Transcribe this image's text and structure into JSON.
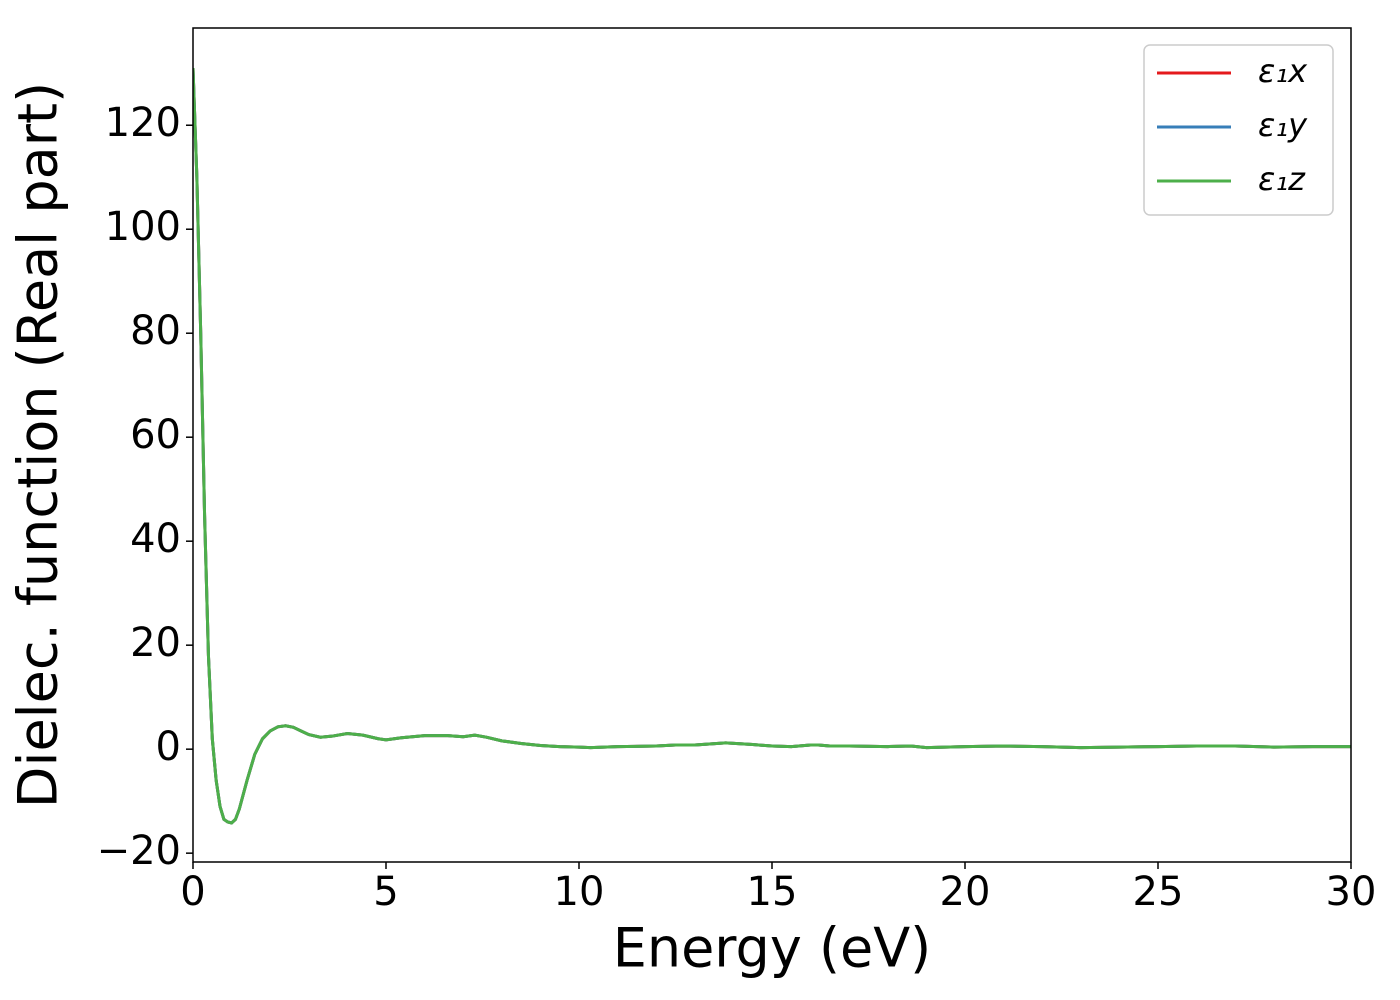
{
  "chart_data": {
    "type": "line",
    "xlabel": "Energy (eV)",
    "ylabel": "Dielec. function (Real part)",
    "x": [
      0,
      0.1,
      0.2,
      0.3,
      0.4,
      0.5,
      0.6,
      0.7,
      0.8,
      0.9,
      1.0,
      1.1,
      1.2,
      1.4,
      1.6,
      1.8,
      2.0,
      2.2,
      2.4,
      2.6,
      2.8,
      3.0,
      3.3,
      3.6,
      4.0,
      4.4,
      4.8,
      5.0,
      5.4,
      6.0,
      6.6,
      7.0,
      7.3,
      7.6,
      8.0,
      8.5,
      9.0,
      9.5,
      10,
      10.3,
      11,
      12,
      12.5,
      13,
      13.8,
      14.5,
      15,
      15.5,
      16,
      16.2,
      16.5,
      17,
      18,
      18.6,
      19,
      19.5,
      20,
      21,
      22,
      23,
      24,
      25,
      26,
      27,
      28,
      29,
      30
    ],
    "series": [
      {
        "name": "ε₁x",
        "color": "#e41a1c",
        "values": [
          131,
          110,
          80,
          45,
          18,
          2,
          -6,
          -11,
          -13.5,
          -14,
          -14.2,
          -13.5,
          -11.5,
          -6,
          -1,
          2,
          3.5,
          4.3,
          4.5,
          4.2,
          3.5,
          2.8,
          2.3,
          2.5,
          3.0,
          2.7,
          2.0,
          1.8,
          2.2,
          2.6,
          2.6,
          2.4,
          2.7,
          2.3,
          1.6,
          1.1,
          0.7,
          0.5,
          0.4,
          0.3,
          0.5,
          0.6,
          0.8,
          0.8,
          1.2,
          0.9,
          0.6,
          0.5,
          0.8,
          0.8,
          0.6,
          0.6,
          0.5,
          0.6,
          0.3,
          0.4,
          0.5,
          0.6,
          0.5,
          0.3,
          0.4,
          0.5,
          0.6,
          0.6,
          0.4,
          0.5,
          0.5
        ]
      },
      {
        "name": "ε₁y",
        "color": "#377eb8",
        "values": [
          131,
          110,
          80,
          45,
          18,
          2,
          -6,
          -11,
          -13.5,
          -14,
          -14.2,
          -13.5,
          -11.5,
          -6,
          -1,
          2,
          3.5,
          4.3,
          4.5,
          4.2,
          3.5,
          2.8,
          2.3,
          2.5,
          3.0,
          2.7,
          2.0,
          1.8,
          2.2,
          2.6,
          2.6,
          2.4,
          2.7,
          2.3,
          1.6,
          1.1,
          0.7,
          0.5,
          0.4,
          0.3,
          0.5,
          0.6,
          0.8,
          0.8,
          1.2,
          0.9,
          0.6,
          0.5,
          0.8,
          0.8,
          0.6,
          0.6,
          0.5,
          0.6,
          0.3,
          0.4,
          0.5,
          0.6,
          0.5,
          0.3,
          0.4,
          0.5,
          0.6,
          0.6,
          0.4,
          0.5,
          0.5
        ]
      },
      {
        "name": "ε₁z",
        "color": "#4daf4a",
        "values": [
          131,
          110,
          80,
          45,
          18,
          2,
          -6,
          -11,
          -13.5,
          -14,
          -14.2,
          -13.5,
          -11.5,
          -6,
          -1,
          2,
          3.5,
          4.3,
          4.5,
          4.2,
          3.5,
          2.8,
          2.3,
          2.5,
          3.0,
          2.7,
          2.0,
          1.8,
          2.2,
          2.6,
          2.6,
          2.4,
          2.7,
          2.3,
          1.6,
          1.1,
          0.7,
          0.5,
          0.4,
          0.3,
          0.5,
          0.6,
          0.8,
          0.8,
          1.2,
          0.9,
          0.6,
          0.5,
          0.8,
          0.8,
          0.6,
          0.6,
          0.5,
          0.6,
          0.3,
          0.4,
          0.5,
          0.6,
          0.5,
          0.3,
          0.4,
          0.5,
          0.6,
          0.6,
          0.4,
          0.5,
          0.5
        ]
      }
    ],
    "xlim": [
      0,
      30
    ],
    "xticks": [
      0,
      5,
      10,
      15,
      20,
      25,
      30
    ],
    "ylim": [
      -21.7,
      138.7
    ],
    "yticks": [
      {
        "value": -20,
        "label": "−20"
      },
      0,
      20,
      40,
      60,
      80,
      100,
      120
    ],
    "grid": false,
    "legend": "upper right"
  }
}
